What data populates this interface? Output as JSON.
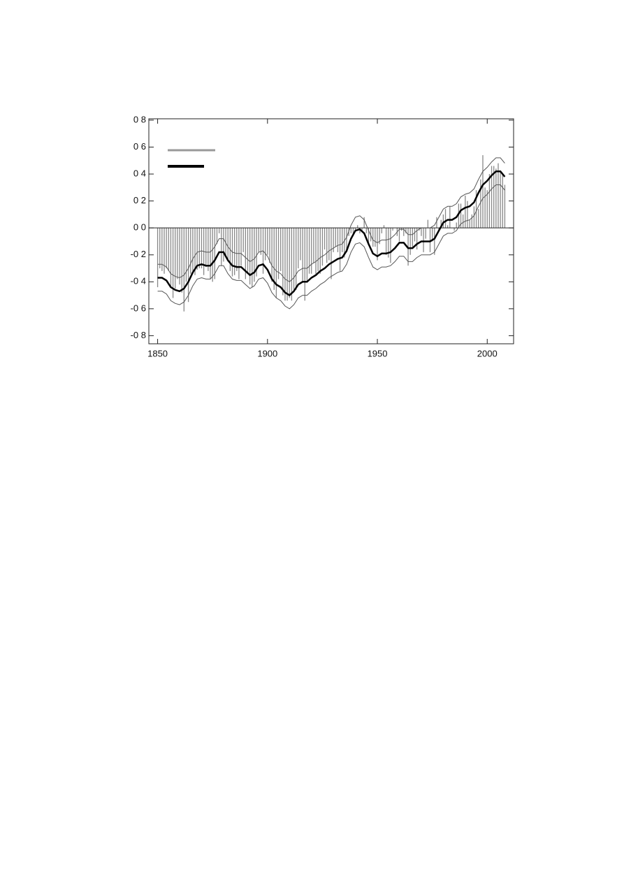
{
  "chart_data": {
    "type": "bar-line",
    "x": [
      1850,
      1851,
      1852,
      1853,
      1854,
      1855,
      1856,
      1857,
      1858,
      1859,
      1860,
      1861,
      1862,
      1863,
      1864,
      1865,
      1866,
      1867,
      1868,
      1869,
      1870,
      1871,
      1872,
      1873,
      1874,
      1875,
      1876,
      1877,
      1878,
      1879,
      1880,
      1881,
      1882,
      1883,
      1884,
      1885,
      1886,
      1887,
      1888,
      1889,
      1890,
      1891,
      1892,
      1893,
      1894,
      1895,
      1896,
      1897,
      1898,
      1899,
      1900,
      1901,
      1902,
      1903,
      1904,
      1905,
      1906,
      1907,
      1908,
      1909,
      1910,
      1911,
      1912,
      1913,
      1914,
      1915,
      1916,
      1917,
      1918,
      1919,
      1920,
      1921,
      1922,
      1923,
      1924,
      1925,
      1926,
      1927,
      1928,
      1929,
      1930,
      1931,
      1932,
      1933,
      1934,
      1935,
      1936,
      1937,
      1938,
      1939,
      1940,
      1941,
      1942,
      1943,
      1944,
      1945,
      1946,
      1947,
      1948,
      1949,
      1950,
      1951,
      1952,
      1953,
      1954,
      1955,
      1956,
      1957,
      1958,
      1959,
      1960,
      1961,
      1962,
      1963,
      1964,
      1965,
      1966,
      1967,
      1968,
      1969,
      1970,
      1971,
      1972,
      1973,
      1974,
      1975,
      1976,
      1977,
      1978,
      1979,
      1980,
      1981,
      1982,
      1983,
      1984,
      1985,
      1986,
      1987,
      1988,
      1989,
      1990,
      1991,
      1992,
      1993,
      1994,
      1995,
      1996,
      1997,
      1998,
      1999,
      2000,
      2001,
      2002,
      2003,
      2004,
      2005,
      2006,
      2007,
      2008
    ],
    "values": [
      -0.44,
      -0.3,
      -0.32,
      -0.34,
      -0.3,
      -0.32,
      -0.44,
      -0.52,
      -0.45,
      -0.38,
      -0.42,
      -0.48,
      -0.62,
      -0.4,
      -0.55,
      -0.34,
      -0.32,
      -0.35,
      -0.31,
      -0.3,
      -0.3,
      -0.35,
      -0.29,
      -0.32,
      -0.38,
      -0.4,
      -0.38,
      -0.12,
      -0.04,
      -0.28,
      -0.25,
      -0.22,
      -0.24,
      -0.32,
      -0.36,
      -0.35,
      -0.32,
      -0.38,
      -0.28,
      -0.18,
      -0.38,
      -0.34,
      -0.42,
      -0.44,
      -0.4,
      -0.36,
      -0.18,
      -0.2,
      -0.34,
      -0.24,
      -0.2,
      -0.26,
      -0.4,
      -0.46,
      -0.52,
      -0.38,
      -0.32,
      -0.5,
      -0.54,
      -0.54,
      -0.52,
      -0.54,
      -0.46,
      -0.46,
      -0.3,
      -0.24,
      -0.4,
      -0.54,
      -0.4,
      -0.34,
      -0.34,
      -0.26,
      -0.34,
      -0.32,
      -0.34,
      -0.28,
      -0.16,
      -0.26,
      -0.24,
      -0.38,
      -0.18,
      -0.14,
      -0.18,
      -0.32,
      -0.18,
      -0.22,
      -0.18,
      -0.06,
      -0.04,
      -0.06,
      -0.02,
      0.02,
      -0.04,
      -0.02,
      0.08,
      -0.04,
      -0.12,
      -0.1,
      -0.14,
      -0.14,
      -0.24,
      -0.12,
      -0.04,
      0.02,
      -0.2,
      -0.22,
      -0.26,
      -0.02,
      0.0,
      -0.06,
      -0.1,
      -0.02,
      -0.06,
      -0.04,
      -0.28,
      -0.2,
      -0.14,
      -0.1,
      -0.16,
      -0.02,
      -0.06,
      -0.18,
      -0.08,
      0.06,
      -0.18,
      -0.1,
      -0.2,
      0.08,
      -0.02,
      0.06,
      0.1,
      0.14,
      0.02,
      0.16,
      0.0,
      -0.02,
      0.04,
      0.18,
      0.18,
      0.1,
      0.24,
      0.2,
      0.06,
      0.1,
      0.16,
      0.28,
      0.14,
      0.36,
      0.54,
      0.3,
      0.28,
      0.4,
      0.46,
      0.46,
      0.44,
      0.48,
      0.42,
      0.4,
      0.32
    ],
    "bar_color": "#888888",
    "curves": {
      "x": [
        1850,
        1852,
        1854,
        1856,
        1858,
        1860,
        1862,
        1864,
        1866,
        1868,
        1870,
        1872,
        1874,
        1876,
        1878,
        1880,
        1882,
        1884,
        1886,
        1888,
        1890,
        1892,
        1894,
        1896,
        1898,
        1900,
        1902,
        1904,
        1906,
        1908,
        1910,
        1912,
        1914,
        1916,
        1918,
        1920,
        1922,
        1924,
        1926,
        1928,
        1930,
        1932,
        1934,
        1936,
        1938,
        1940,
        1942,
        1944,
        1946,
        1948,
        1950,
        1952,
        1954,
        1956,
        1958,
        1960,
        1962,
        1964,
        1966,
        1968,
        1970,
        1972,
        1974,
        1976,
        1978,
        1980,
        1982,
        1984,
        1986,
        1988,
        1990,
        1992,
        1994,
        1996,
        1998,
        2000,
        2002,
        2004,
        2006,
        2008
      ],
      "series": [
        {
          "color": "#000000",
          "width": 2.5,
          "values": [
            -0.37,
            -0.37,
            -0.39,
            -0.44,
            -0.46,
            -0.47,
            -0.45,
            -0.4,
            -0.33,
            -0.28,
            -0.27,
            -0.28,
            -0.28,
            -0.24,
            -0.18,
            -0.18,
            -0.24,
            -0.28,
            -0.29,
            -0.29,
            -0.32,
            -0.35,
            -0.33,
            -0.28,
            -0.27,
            -0.31,
            -0.38,
            -0.42,
            -0.44,
            -0.48,
            -0.5,
            -0.47,
            -0.42,
            -0.4,
            -0.4,
            -0.37,
            -0.35,
            -0.32,
            -0.3,
            -0.27,
            -0.25,
            -0.23,
            -0.22,
            -0.17,
            -0.08,
            -0.02,
            -0.01,
            -0.04,
            -0.12,
            -0.19,
            -0.21,
            -0.19,
            -0.19,
            -0.18,
            -0.15,
            -0.11,
            -0.11,
            -0.15,
            -0.15,
            -0.12,
            -0.1,
            -0.1,
            -0.1,
            -0.08,
            -0.02,
            0.04,
            0.06,
            0.06,
            0.08,
            0.13,
            0.15,
            0.16,
            0.19,
            0.26,
            0.32,
            0.35,
            0.39,
            0.42,
            0.42,
            0.38
          ]
        },
        {
          "color": "#555555",
          "width": 1,
          "values": [
            -0.27,
            -0.27,
            -0.29,
            -0.34,
            -0.36,
            -0.37,
            -0.35,
            -0.3,
            -0.23,
            -0.18,
            -0.17,
            -0.18,
            -0.18,
            -0.14,
            -0.08,
            -0.08,
            -0.14,
            -0.18,
            -0.19,
            -0.19,
            -0.22,
            -0.25,
            -0.23,
            -0.18,
            -0.17,
            -0.21,
            -0.28,
            -0.32,
            -0.34,
            -0.38,
            -0.4,
            -0.37,
            -0.32,
            -0.3,
            -0.3,
            -0.27,
            -0.25,
            -0.22,
            -0.2,
            -0.17,
            -0.15,
            -0.13,
            -0.12,
            -0.07,
            0.02,
            0.08,
            0.09,
            0.06,
            -0.02,
            -0.09,
            -0.11,
            -0.09,
            -0.09,
            -0.08,
            -0.05,
            -0.01,
            -0.01,
            -0.05,
            -0.05,
            -0.02,
            0.0,
            0.0,
            0.0,
            0.02,
            0.08,
            0.14,
            0.16,
            0.16,
            0.18,
            0.23,
            0.25,
            0.26,
            0.29,
            0.36,
            0.42,
            0.45,
            0.49,
            0.52,
            0.52,
            0.48
          ]
        },
        {
          "color": "#555555",
          "width": 1,
          "values": [
            -0.47,
            -0.47,
            -0.49,
            -0.54,
            -0.56,
            -0.57,
            -0.55,
            -0.5,
            -0.43,
            -0.38,
            -0.37,
            -0.38,
            -0.38,
            -0.34,
            -0.28,
            -0.28,
            -0.34,
            -0.38,
            -0.39,
            -0.39,
            -0.42,
            -0.45,
            -0.43,
            -0.38,
            -0.37,
            -0.41,
            -0.48,
            -0.52,
            -0.54,
            -0.58,
            -0.6,
            -0.57,
            -0.52,
            -0.5,
            -0.5,
            -0.47,
            -0.45,
            -0.42,
            -0.4,
            -0.37,
            -0.35,
            -0.33,
            -0.32,
            -0.27,
            -0.18,
            -0.12,
            -0.11,
            -0.14,
            -0.22,
            -0.29,
            -0.31,
            -0.29,
            -0.29,
            -0.28,
            -0.25,
            -0.21,
            -0.21,
            -0.25,
            -0.25,
            -0.22,
            -0.2,
            -0.2,
            -0.2,
            -0.18,
            -0.12,
            -0.06,
            -0.04,
            -0.04,
            -0.02,
            0.03,
            0.05,
            0.06,
            0.09,
            0.16,
            0.22,
            0.25,
            0.29,
            0.32,
            0.32,
            0.28
          ]
        }
      ]
    },
    "xlim": [
      1846,
      2012
    ],
    "xticks": [
      1850,
      1900,
      1950,
      2000
    ],
    "ylim": [
      -0.86,
      0.81
    ],
    "yticks": [
      {
        "value": 0.8,
        "label": "0 8"
      },
      {
        "value": 0.6,
        "label": "0 6"
      },
      {
        "value": 0.4,
        "label": "0 4"
      },
      {
        "value": 0.2,
        "label": "0 2"
      },
      {
        "value": 0.0,
        "label": "0 0"
      },
      {
        "value": -0.2,
        "label": "-0 2"
      },
      {
        "value": -0.4,
        "label": "-0 4"
      },
      {
        "value": -0.6,
        "label": "-0 6"
      },
      {
        "value": -0.8,
        "label": "-0 8"
      }
    ]
  }
}
